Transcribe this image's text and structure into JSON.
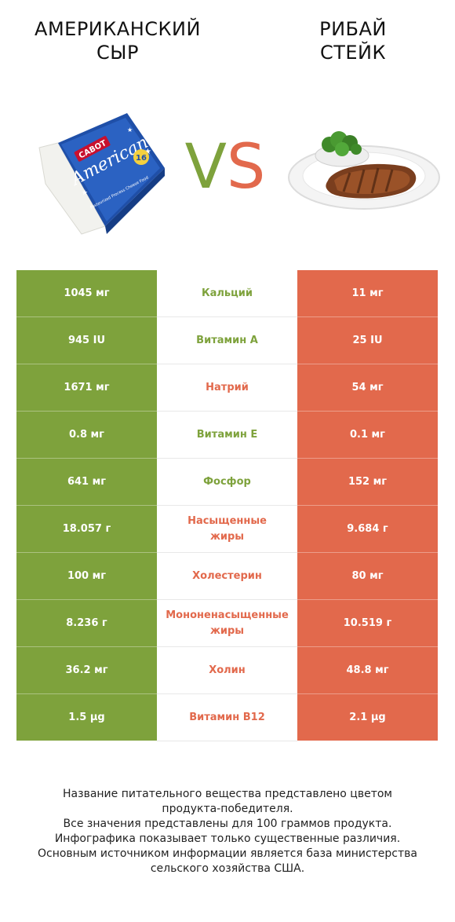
{
  "header": {
    "left_title_line1": "АМЕРИКАНСКИЙ",
    "left_title_line2": "СЫР",
    "right_title_line1": "РИБАЙ",
    "right_title_line2": "СТЕЙК",
    "vs_v": "V",
    "vs_s": "S"
  },
  "images": {
    "left": {
      "icon": "cheese-package-icon",
      "brand_text": "CABOT",
      "label_text": "American",
      "count_text": "16",
      "sub_text": "Pasteurized Process Cheese Food"
    },
    "right": {
      "icon": "ribeye-steak-plate-icon"
    }
  },
  "colors": {
    "winner_left": "#7ea23c",
    "winner_right": "#e2694c"
  },
  "rows": [
    {
      "left": "1045 мг",
      "name": "Кальций",
      "right": "11 мг",
      "winner": "left"
    },
    {
      "left": "945 IU",
      "name": "Витамин A",
      "right": "25 IU",
      "winner": "left"
    },
    {
      "left": "1671 мг",
      "name": "Натрий",
      "right": "54 мг",
      "winner": "right"
    },
    {
      "left": "0.8 мг",
      "name": "Витамин E",
      "right": "0.1 мг",
      "winner": "left"
    },
    {
      "left": "641 мг",
      "name": "Фосфор",
      "right": "152 мг",
      "winner": "left"
    },
    {
      "left": "18.057 г",
      "name_line1": "Насыщенные",
      "name_line2": "жиры",
      "right": "9.684 г",
      "winner": "right"
    },
    {
      "left": "100 мг",
      "name": "Холестерин",
      "right": "80 мг",
      "winner": "right"
    },
    {
      "left": "8.236 г",
      "name_line1": "Мононенасыщенные",
      "name_line2": "жиры",
      "right": "10.519 г",
      "winner": "right"
    },
    {
      "left": "36.2 мг",
      "name": "Холин",
      "right": "48.8 мг",
      "winner": "right"
    },
    {
      "left": "1.5 µg",
      "name": "Витамин B12",
      "right": "2.1 µg",
      "winner": "right"
    }
  ],
  "footer": {
    "line1": "Название питательного вещества представлено цветом",
    "line2": "продукта-победителя.",
    "line3": "Все значения представлены для 100 граммов продукта.",
    "line4": "Инфографика показывает только существенные различия.",
    "line5": "Основным источником информации является база министерства",
    "line6": "сельского хозяйства США."
  }
}
